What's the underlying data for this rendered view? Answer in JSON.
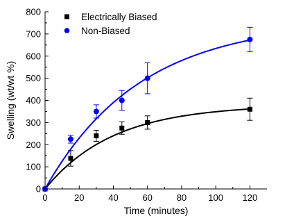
{
  "chart_data": {
    "type": "scatter",
    "title": "",
    "xlabel": "Time (minutes)",
    "ylabel": "Swelling (wt/wt %)",
    "xlim": [
      0,
      130
    ],
    "ylim": [
      0,
      800
    ],
    "xticks": [
      0,
      20,
      40,
      60,
      80,
      100,
      120
    ],
    "yticks": [
      0,
      100,
      200,
      300,
      400,
      500,
      600,
      700,
      800
    ],
    "grid": false,
    "legend_position": "top-left",
    "series": [
      {
        "name": "Electrically Biased",
        "marker": "square",
        "color": "#000000",
        "x": [
          0,
          15,
          30,
          45,
          60,
          120
        ],
        "y": [
          0,
          138,
          240,
          275,
          300,
          360
        ],
        "error": [
          0,
          35,
          25,
          28,
          30,
          50
        ],
        "fit": {
          "model": "exponential rise to max",
          "ymax": 380,
          "k": 0.025
        }
      },
      {
        "name": "Non-Biased",
        "marker": "circle",
        "color": "#0000ff",
        "x": [
          0,
          15,
          30,
          45,
          60,
          120
        ],
        "y": [
          0,
          225,
          350,
          400,
          500,
          675
        ],
        "error": [
          0,
          18,
          30,
          45,
          70,
          55
        ],
        "fit": {
          "model": "exponential rise to max",
          "ymax": 760,
          "k": 0.018
        }
      }
    ]
  }
}
